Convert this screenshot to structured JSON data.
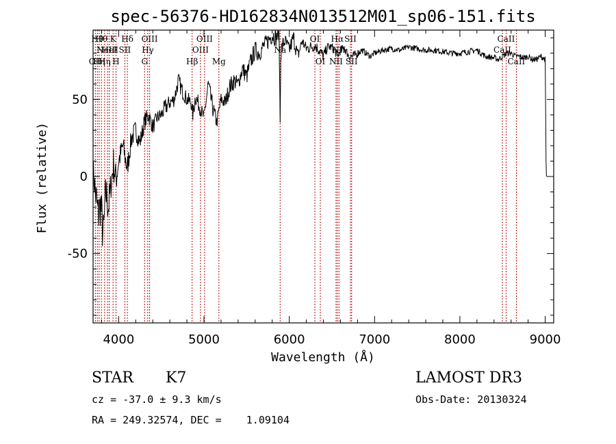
{
  "colors": {
    "axis": "#000000",
    "spectrum": "#000000",
    "line_marker": "#c00000",
    "background": "#ffffff"
  },
  "chart_data": {
    "type": "line",
    "title": "spec-56376-HD162834N013512M01_sp06-151.fits",
    "xlabel": "Wavelength (Å)",
    "ylabel": "Flux (relative)",
    "xlim": [
      3700,
      9100
    ],
    "ylim": [
      -95,
      95
    ],
    "xticks": [
      4000,
      5000,
      6000,
      7000,
      8000,
      9000
    ],
    "yticks": [
      -50,
      0,
      50
    ],
    "series": [
      {
        "name": "spectrum",
        "x": [
          3700,
          3730,
          3760,
          3790,
          3820,
          3850,
          3880,
          3910,
          3940,
          3970,
          4000,
          4050,
          4100,
          4150,
          4200,
          4250,
          4300,
          4350,
          4400,
          4450,
          4500,
          4550,
          4600,
          4650,
          4700,
          4750,
          4800,
          4850,
          4870,
          4900,
          4950,
          5000,
          5050,
          5100,
          5150,
          5200,
          5250,
          5300,
          5350,
          5400,
          5450,
          5500,
          5550,
          5600,
          5650,
          5700,
          5750,
          5800,
          5850,
          5880,
          5893,
          5900,
          5920,
          5950,
          6000,
          6050,
          6100,
          6150,
          6200,
          6250,
          6300,
          6350,
          6400,
          6450,
          6500,
          6550,
          6563,
          6600,
          6650,
          6700,
          6750,
          6800,
          6850,
          6900,
          6950,
          7000,
          7100,
          7200,
          7300,
          7400,
          7500,
          7600,
          7700,
          7800,
          7900,
          8000,
          8100,
          8200,
          8300,
          8400,
          8450,
          8500,
          8550,
          8600,
          8650,
          8700,
          8750,
          8800,
          8850,
          8900,
          8950,
          9000,
          9010,
          9015
        ],
        "values": [
          5,
          -12,
          -25,
          -18,
          -40,
          -10,
          -20,
          -5,
          8,
          -2,
          10,
          20,
          5,
          25,
          30,
          22,
          35,
          40,
          32,
          38,
          40,
          45,
          48,
          50,
          62,
          55,
          50,
          48,
          40,
          52,
          45,
          38,
          60,
          45,
          35,
          50,
          48,
          58,
          62,
          60,
          70,
          65,
          75,
          82,
          80,
          85,
          88,
          92,
          90,
          95,
          35,
          80,
          85,
          88,
          82,
          90,
          78,
          88,
          83,
          84,
          85,
          82,
          78,
          84,
          84,
          80,
          78,
          82,
          83,
          78,
          78,
          80,
          82,
          80,
          78,
          80,
          82,
          83,
          82,
          84,
          83,
          82,
          82,
          81,
          80,
          80,
          81,
          82,
          78,
          77,
          76,
          78,
          80,
          80,
          78,
          78,
          77,
          78,
          76,
          76,
          78,
          76,
          10,
          0
        ],
        "noise": [
          8,
          14,
          16,
          14,
          18,
          16,
          12,
          10,
          12,
          10,
          8,
          8,
          8,
          7,
          7,
          6,
          6,
          6,
          5,
          5,
          5,
          6,
          5,
          5,
          6,
          5,
          5,
          5,
          5,
          6,
          5,
          5,
          6,
          6,
          5,
          5,
          5,
          6,
          6,
          5,
          6,
          6,
          6,
          6,
          6,
          5,
          6,
          6,
          6,
          6,
          0,
          6,
          6,
          5,
          5,
          6,
          5,
          4,
          4,
          4,
          4,
          4,
          4,
          3,
          3,
          3,
          3,
          3,
          3,
          3,
          3,
          3,
          2,
          2,
          2,
          2,
          2,
          2,
          2,
          2,
          2,
          2,
          2,
          2,
          2,
          2,
          2,
          2,
          2,
          2,
          2,
          2,
          2,
          2,
          2,
          2,
          2,
          2,
          2,
          2,
          2,
          2,
          0,
          0
        ]
      }
    ],
    "lines": [
      {
        "wave": 3727,
        "label": "OII",
        "row": 2
      },
      {
        "wave": 3750,
        "label": "Hθ",
        "row": 0
      },
      {
        "wave": 3771,
        "label": "Hη",
        "row": 2
      },
      {
        "wave": 3798,
        "label": "Hθ",
        "row": 0
      },
      {
        "wave": 3835,
        "label": "Hη",
        "row": 2
      },
      {
        "wave": 3869,
        "label": "NeIII",
        "row": 1
      },
      {
        "wave": 3889,
        "label": "HeI",
        "row": 1
      },
      {
        "wave": 3934,
        "label": "K",
        "row": 0
      },
      {
        "wave": 3969,
        "label": "H",
        "row": 2
      },
      {
        "wave": 4072,
        "label": "SII",
        "row": 1
      },
      {
        "wave": 4102,
        "label": "Hδ",
        "row": 0
      },
      {
        "wave": 4304,
        "label": "G",
        "row": 2
      },
      {
        "wave": 4341,
        "label": "Hγ",
        "row": 1
      },
      {
        "wave": 4363,
        "label": "OIII",
        "row": 0
      },
      {
        "wave": 4861,
        "label": "Hβ",
        "row": 2
      },
      {
        "wave": 4959,
        "label": "OIII",
        "row": 1
      },
      {
        "wave": 5007,
        "label": "OIII",
        "row": 0
      },
      {
        "wave": 5175,
        "label": "Mg",
        "row": 2
      },
      {
        "wave": 5893,
        "label": "Na",
        "row": 1
      },
      {
        "wave": 6300,
        "label": "OI",
        "row": 0
      },
      {
        "wave": 6364,
        "label": "OI",
        "row": 2
      },
      {
        "wave": 6548,
        "label": "NII",
        "row": 2
      },
      {
        "wave": 6563,
        "label": "Hα",
        "row": 0
      },
      {
        "wave": 6583,
        "label": "NII",
        "row": 1
      },
      {
        "wave": 6717,
        "label": "SII",
        "row": 0
      },
      {
        "wave": 6731,
        "label": "SII",
        "row": 2
      },
      {
        "wave": 8498,
        "label": "CaII",
        "row": 1
      },
      {
        "wave": 8542,
        "label": "CaII",
        "row": 0
      },
      {
        "wave": 8662,
        "label": "CaII",
        "row": 2
      }
    ]
  },
  "info": {
    "class": "STAR",
    "subclass": "K7",
    "survey": "LAMOST DR3",
    "cz": "cz = -37.0 ± 9.3 km/s",
    "obs_date": "Obs-Date: 20130324",
    "coords": "RA = 249.32574, DEC =    1.09104"
  }
}
